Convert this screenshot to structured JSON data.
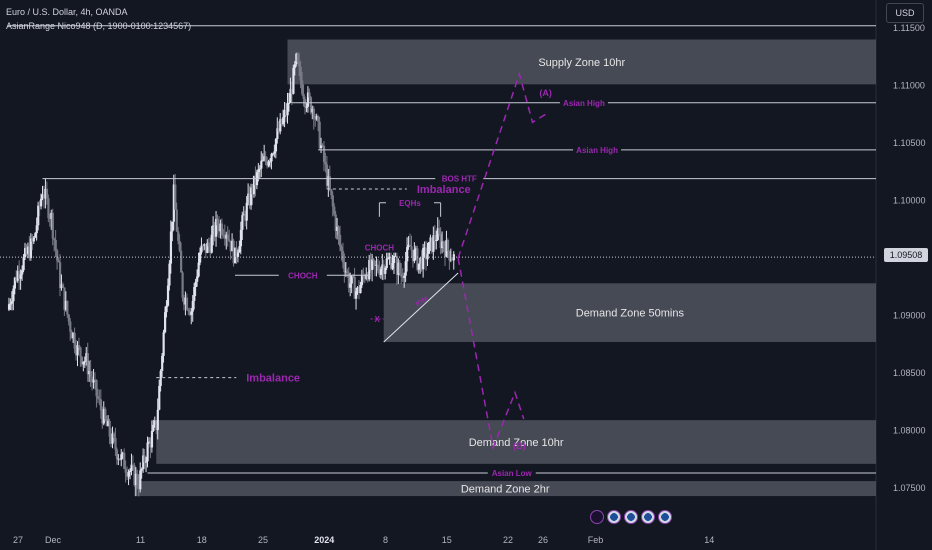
{
  "header": {
    "title": "Euro / U.S. Dollar, 4h, OANDA",
    "indicator": "AsianRange Nico948 (D, 1900-0100:1234567)"
  },
  "toolbar": {
    "currency": "USD"
  },
  "last_price": "1.09508",
  "colors": {
    "background": "#131722",
    "purple": "#9c27b0",
    "zone": "#50535e",
    "candle": "#d1d4dc"
  },
  "chart_data": {
    "type": "candlestick",
    "symbol": "EURUSD",
    "timeframe": "4h",
    "ylim": [
      1.0715,
      1.1155
    ],
    "y_ticks": [
      "1.11500",
      "1.11000",
      "1.10500",
      "1.10000",
      "1.09500",
      "1.09000",
      "1.08500",
      "1.08000",
      "1.07500"
    ],
    "x_ticks": [
      {
        "label": "27",
        "day": 0
      },
      {
        "label": "Dec",
        "day": 4
      },
      {
        "label": "11",
        "day": 14
      },
      {
        "label": "18",
        "day": 21
      },
      {
        "label": "25",
        "day": 28
      },
      {
        "label": "2024",
        "day": 35
      },
      {
        "label": "8",
        "day": 42
      },
      {
        "label": "15",
        "day": 49
      },
      {
        "label": "22",
        "day": 56
      },
      {
        "label": "26",
        "day": 60
      },
      {
        "label": "Feb",
        "day": 66
      },
      {
        "label": "14",
        "day": 79
      }
    ],
    "price_path": [
      [
        -2,
        1.0905
      ],
      [
        -1,
        1.0935
      ],
      [
        0,
        1.095
      ],
      [
        1,
        1.0965
      ],
      [
        2,
        1.101
      ],
      [
        3,
        1.0985
      ],
      [
        4,
        1.093
      ],
      [
        5,
        1.0895
      ],
      [
        6,
        1.087
      ],
      [
        7,
        1.086
      ],
      [
        8,
        1.0835
      ],
      [
        9,
        1.081
      ],
      [
        10,
        1.079
      ],
      [
        11,
        1.0775
      ],
      [
        12,
        1.0765
      ],
      [
        13,
        1.0755
      ],
      [
        14,
        1.0785
      ],
      [
        15,
        1.0805
      ],
      [
        16,
        1.09
      ],
      [
        17,
        1.1005
      ],
      [
        18,
        1.092
      ],
      [
        19,
        1.0905
      ],
      [
        20,
        1.0955
      ],
      [
        21,
        1.096
      ],
      [
        22,
        1.098
      ],
      [
        23,
        1.0975
      ],
      [
        24,
        1.095
      ],
      [
        25,
        1.0985
      ],
      [
        26,
        1.101
      ],
      [
        27,
        1.103
      ],
      [
        28,
        1.104
      ],
      [
        29,
        1.106
      ],
      [
        30,
        1.108
      ],
      [
        31,
        1.112
      ],
      [
        32,
        1.109
      ],
      [
        33,
        1.108
      ],
      [
        34,
        1.104
      ],
      [
        35,
        1.1
      ],
      [
        36,
        1.096
      ],
      [
        37,
        1.093
      ],
      [
        38,
        1.092
      ],
      [
        39,
        1.094
      ],
      [
        40,
        1.094
      ],
      [
        41,
        1.0945
      ],
      [
        42,
        1.095
      ],
      [
        43,
        1.0935
      ],
      [
        44,
        1.096
      ],
      [
        45,
        1.0945
      ],
      [
        46,
        1.0955
      ],
      [
        47,
        1.097
      ],
      [
        48,
        1.096
      ],
      [
        49,
        1.095
      ]
    ],
    "zones": [
      {
        "label": "Supply Zone 10hr",
        "from_day": 30,
        "high": 1.114,
        "low": 1.1101
      },
      {
        "label": "Demand Zone 50mins",
        "from_day": 41,
        "high": 1.0928,
        "low": 1.0877
      },
      {
        "label": "Demand Zone 10hr",
        "from_day": 15,
        "high": 1.0809,
        "low": 1.0771
      },
      {
        "label": "Demand Zone 2hr",
        "from_day": 12.5,
        "high": 1.0756,
        "low": 1.0743
      }
    ],
    "levels": [
      {
        "label": "",
        "price": 1.1152,
        "from_day": -2
      },
      {
        "label": "Asian High",
        "price": 1.1085,
        "from_day": 30.5
      },
      {
        "label": "Asian High",
        "price": 1.1044,
        "from_day": 33.5
      },
      {
        "label": "BOS HTF",
        "price": 1.1019,
        "from_day": 2
      },
      {
        "label": "CHOCH",
        "price": 1.0959,
        "from_day": 39.5,
        "to_day": 41.5
      },
      {
        "label": "CHOCH",
        "price": 1.0935,
        "from_day": 24,
        "to_day": 39.5
      },
      {
        "label": "EQHs",
        "price": 1.0998,
        "from_day": 40.5,
        "to_day": 47.5
      },
      {
        "label": "Asian Low",
        "price": 1.0763,
        "from_day": 14
      }
    ],
    "imbalances": [
      {
        "label": "Imbalance",
        "price": 1.101,
        "from_day": 34.5
      },
      {
        "label": "Imbalance",
        "price": 1.0846,
        "from_day": 15
      }
    ],
    "trendline": {
      "start": [
        41,
        1.0877
      ],
      "end": [
        49.5,
        1.0937
      ],
      "label": "IDM"
    },
    "sweep_marker": {
      "label": "X",
      "price": 1.0897,
      "from_day": 39.5,
      "to_day": 41
    },
    "projections": [
      {
        "name": "(A)",
        "points": [
          [
            49.5,
            1.095
          ],
          [
            56.5,
            1.111
          ],
          [
            58,
            1.1068
          ],
          [
            59.5,
            1.1075
          ]
        ]
      },
      {
        "name": "(B)",
        "points": [
          [
            49.5,
            1.095
          ],
          [
            53.5,
            1.0785
          ],
          [
            56,
            1.0833
          ],
          [
            57,
            1.081
          ]
        ]
      }
    ]
  }
}
